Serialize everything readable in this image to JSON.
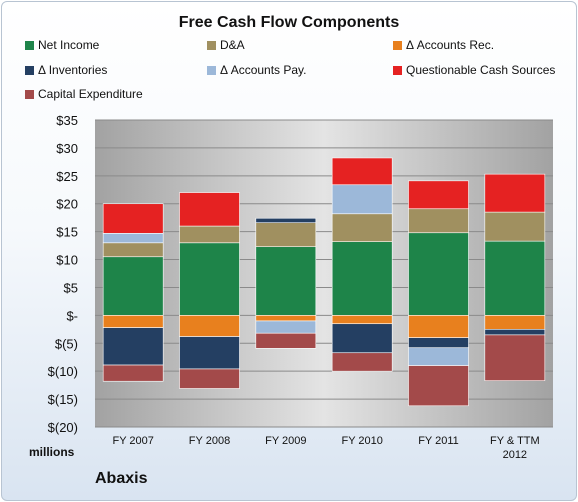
{
  "chart_data": {
    "type": "bar",
    "stacked": true,
    "title": "Free Cash Flow Components",
    "ylabel": "millions",
    "ylim": [
      -20,
      35
    ],
    "yticks": [
      35,
      30,
      25,
      20,
      15,
      10,
      5,
      0,
      -5,
      -10,
      -15,
      -20
    ],
    "ytick_labels": [
      "$35",
      "$30",
      "$25",
      "$20",
      "$15",
      "$10",
      "$5",
      "$-",
      "$(5)",
      "$(10)",
      "$(15)",
      "$(20)"
    ],
    "categories": [
      "FY 2007",
      "FY 2008",
      "FY 2009",
      "FY 2010",
      "FY 2011",
      "FY & TTM 2012"
    ],
    "legend_position": "top",
    "grid": true,
    "series": [
      {
        "name": "Net Income",
        "color": "#1e8449",
        "values": [
          10.5,
          13.0,
          12.3,
          13.2,
          14.8,
          13.3
        ]
      },
      {
        "name": "D&A",
        "color": "#a09060",
        "values": [
          2.5,
          3.0,
          4.3,
          5.0,
          4.3,
          5.2
        ]
      },
      {
        "name": "Δ Accounts Rec.",
        "color": "#e8801e",
        "values": [
          -2.2,
          -3.8,
          -1.0,
          -1.5,
          -4.0,
          -2.5
        ]
      },
      {
        "name": "Δ Inventories",
        "color": "#243f62",
        "values": [
          -6.7,
          -5.8,
          0.8,
          -5.2,
          -1.8,
          -1.0
        ]
      },
      {
        "name": "Δ Accounts Pay.",
        "color": "#9cb8d9",
        "values": [
          1.7,
          0,
          -2.2,
          5.2,
          -3.2,
          0
        ]
      },
      {
        "name": "Questionable Cash Sources",
        "color": "#e52222",
        "values": [
          5.3,
          6.0,
          0,
          4.8,
          5.0,
          6.8
        ]
      },
      {
        "name": "Capital Expenditure",
        "color": "#a34a4a",
        "values": [
          -2.9,
          -3.5,
          -2.7,
          -3.3,
          -7.2,
          -8.2
        ]
      }
    ]
  },
  "footer": {
    "company": "Abaxis"
  }
}
